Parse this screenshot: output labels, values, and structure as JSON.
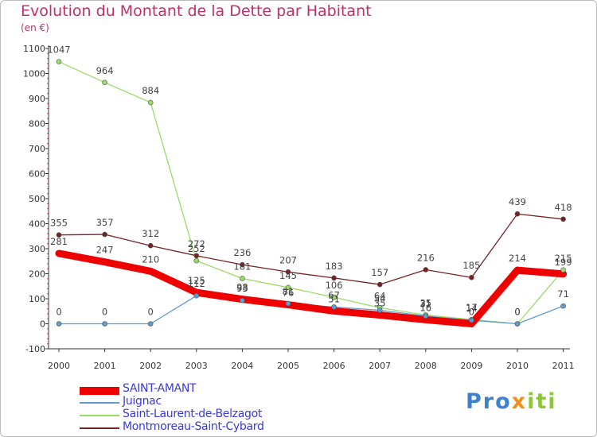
{
  "chart_data": {
    "type": "line",
    "title": "Evolution du Montant de la Dette par Habitant",
    "subtitle": "(en €)",
    "xlabel": "",
    "ylabel": "",
    "ylim": [
      -100,
      1100
    ],
    "yticks": [
      -100,
      0,
      100,
      200,
      300,
      400,
      500,
      600,
      700,
      800,
      900,
      1000,
      1100
    ],
    "categories": [
      "2000",
      "2001",
      "2002",
      "2003",
      "2004",
      "2005",
      "2006",
      "2007",
      "2008",
      "2009",
      "2010",
      "2011"
    ],
    "series": [
      {
        "name": "SAINT-AMANT",
        "color": "#ee0000",
        "values": [
          281,
          247,
          210,
          125,
          98,
          76,
          51,
          35,
          16,
          0,
          214,
          199
        ]
      },
      {
        "name": "Juignac",
        "color": "#5f9ccf",
        "values": [
          0,
          0,
          0,
          112,
          93,
          81,
          67,
          54,
          31,
          14,
          0,
          71
        ]
      },
      {
        "name": "Saint-Laurent-de-Belzagot",
        "color": "#99dd66",
        "values": [
          1047,
          964,
          884,
          252,
          181,
          145,
          106,
          64,
          35,
          17,
          0,
          215
        ]
      },
      {
        "name": "Montmoreau-Saint-Cybard",
        "color": "#772222",
        "values": [
          355,
          357,
          312,
          272,
          236,
          207,
          183,
          157,
          216,
          185,
          439,
          418
        ]
      }
    ],
    "legend_position": "bottom-left",
    "grid": false
  },
  "brand": {
    "p1": "Pro",
    "p2": "x",
    "p3": "iti"
  }
}
